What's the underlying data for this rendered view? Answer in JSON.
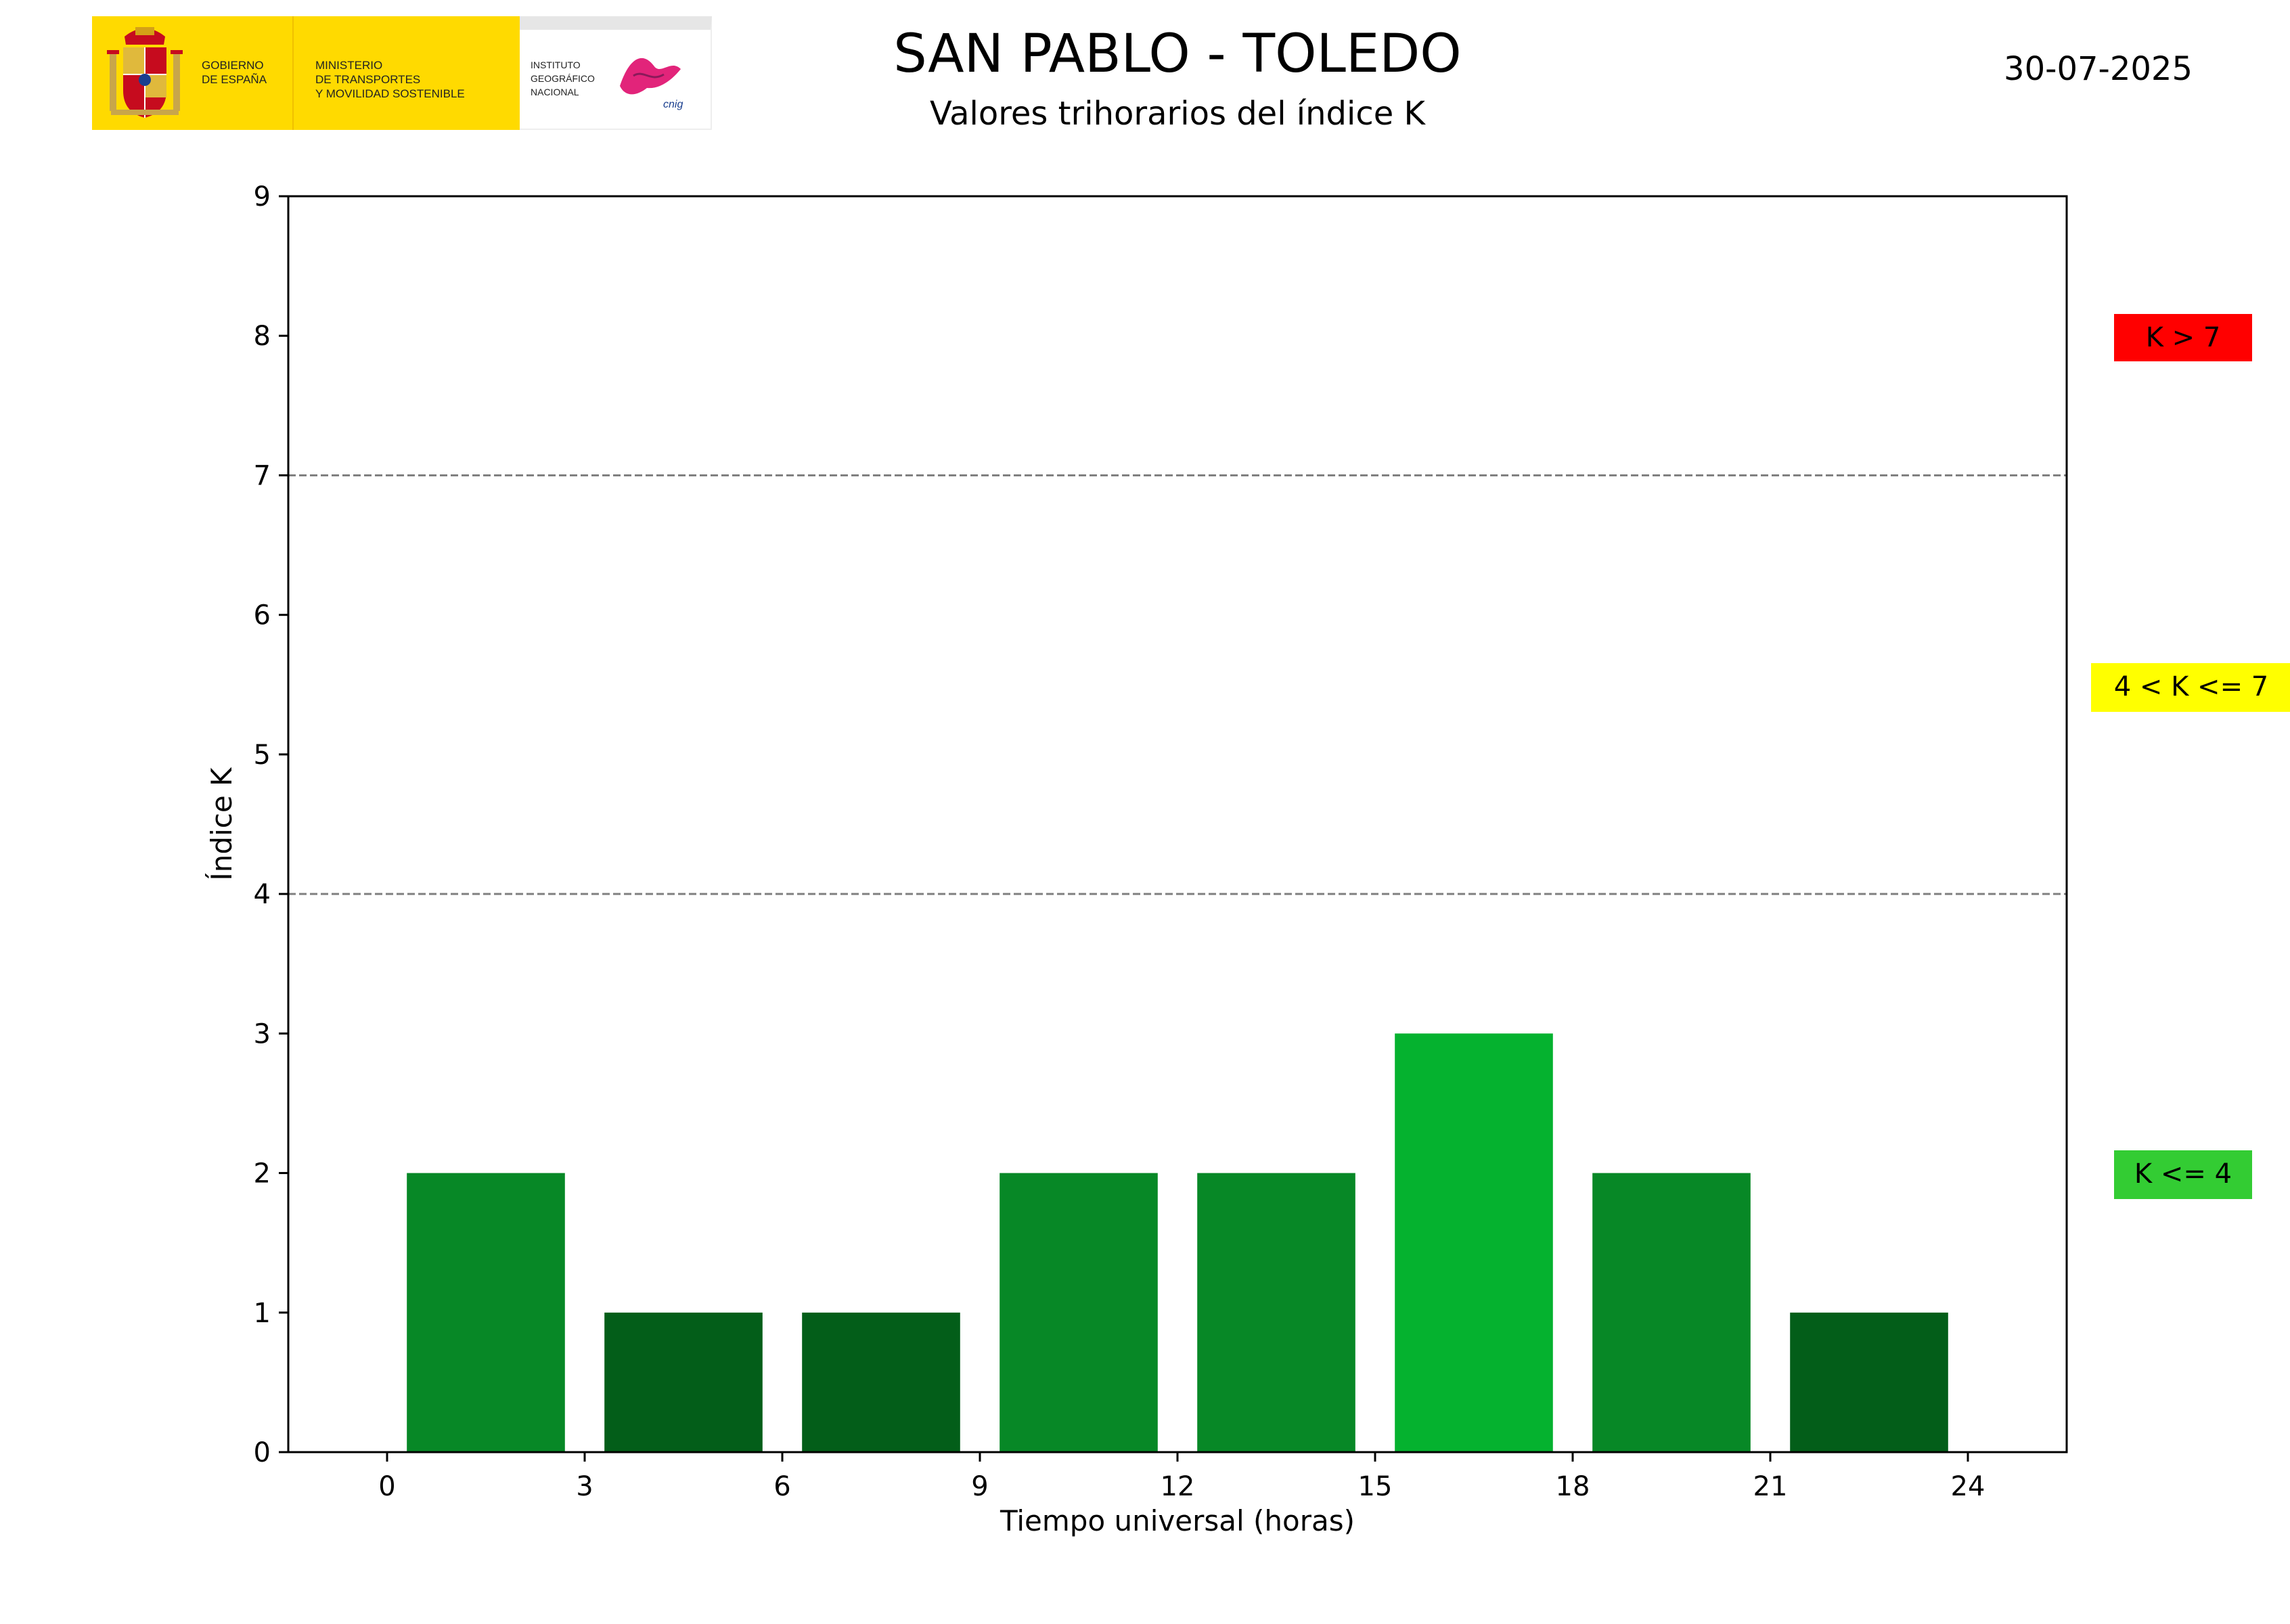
{
  "header": {
    "title": "SAN PABLO - TOLEDO",
    "subtitle": "Valores trihorarios del índice K",
    "date": "30-07-2025",
    "logo_gov_text": "GOBIERNO\nDE ESPAÑA",
    "logo_ministry_text": "MINISTERIO\nDE TRANSPORTES\nY MOVILIDAD SOSTENIBLE",
    "logo_ign_text": "INSTITUTO\nGEOGRÁFICO\nNACIONAL",
    "logo_cnig_text": "cnig"
  },
  "legend": {
    "high": {
      "label": "K > 7",
      "color": "#ff0000"
    },
    "mid": {
      "label": "4 < K <= 7",
      "color": "#ffff00"
    },
    "low": {
      "label": "K <= 4",
      "color": "#33cc33"
    }
  },
  "chart_data": {
    "type": "bar",
    "xlabel": "Tiempo universal (horas)",
    "ylabel": "Índice K",
    "xlim": [
      -1.5,
      25.5
    ],
    "ylim": [
      0,
      9
    ],
    "xticks": [
      0,
      3,
      6,
      9,
      12,
      15,
      18,
      21,
      24
    ],
    "yticks": [
      0,
      1,
      2,
      3,
      4,
      5,
      6,
      7,
      8,
      9
    ],
    "bar_width": 2.4,
    "thresholds": [
      4,
      7
    ],
    "bars": [
      {
        "x": 1.5,
        "value": 2,
        "color": "#078826"
      },
      {
        "x": 4.5,
        "value": 1,
        "color": "#035e19"
      },
      {
        "x": 7.5,
        "value": 1,
        "color": "#035e19"
      },
      {
        "x": 10.5,
        "value": 2,
        "color": "#078826"
      },
      {
        "x": 13.5,
        "value": 2,
        "color": "#078826"
      },
      {
        "x": 16.5,
        "value": 3,
        "color": "#05b22f"
      },
      {
        "x": 19.5,
        "value": 2,
        "color": "#078826"
      },
      {
        "x": 22.5,
        "value": 1,
        "color": "#035e19"
      }
    ]
  }
}
